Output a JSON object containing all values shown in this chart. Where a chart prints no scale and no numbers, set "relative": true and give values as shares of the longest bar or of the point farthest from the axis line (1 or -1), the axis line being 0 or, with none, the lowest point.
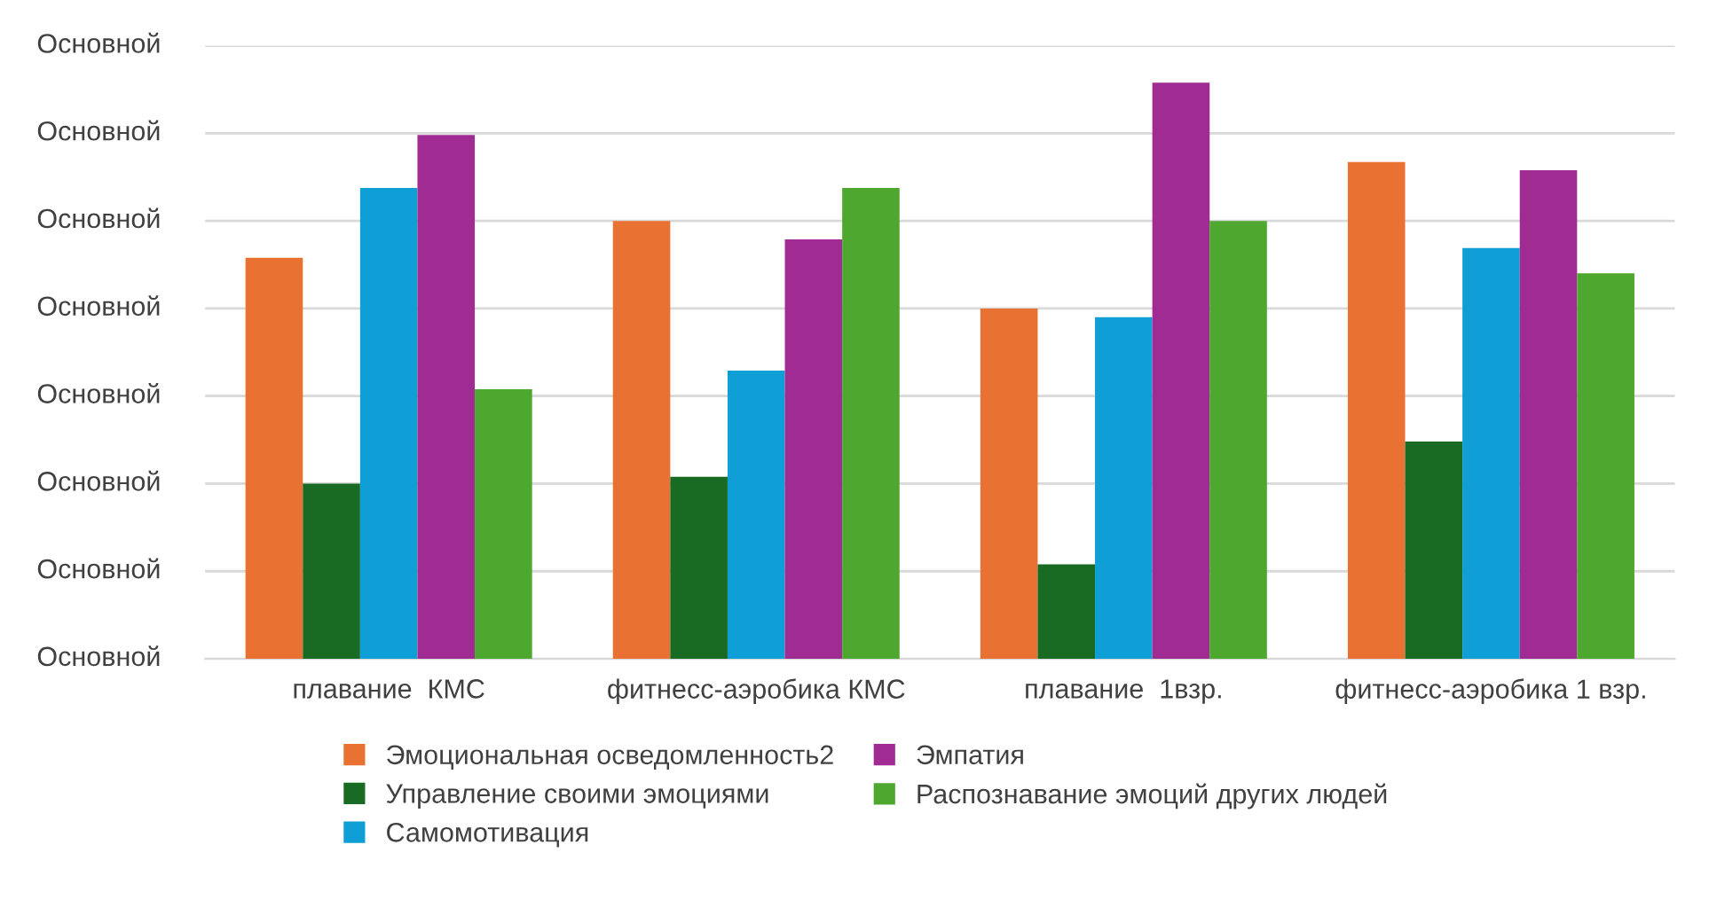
{
  "chart_data": {
    "type": "bar",
    "relative": true,
    "categories": [
      "плавание  КМС",
      "фитнесс-аэробика КМС",
      "плавание  1взр.",
      "фитнесс-аэробика 1 взр."
    ],
    "series": [
      {
        "name": "Эмоциональная осведомленность2",
        "color": "#e97132",
        "values": [
          0.696,
          0.76,
          0.608,
          0.862
        ]
      },
      {
        "name": "Управление своими эмоциями",
        "color": "#196b24",
        "values": [
          0.304,
          0.316,
          0.164,
          0.377
        ]
      },
      {
        "name": "Самомотивация",
        "color": "#0f9ed5",
        "values": [
          0.817,
          0.5,
          0.593,
          0.713
        ]
      },
      {
        "name": "Эмпатия",
        "color": "#a02b93",
        "values": [
          0.909,
          0.728,
          1.0,
          0.848
        ]
      },
      {
        "name": "Распознавание эмоций других людей",
        "color": "#4ea72e",
        "values": [
          0.468,
          0.817,
          0.76,
          0.669
        ]
      }
    ],
    "ylim": [
      0,
      1.064
    ],
    "annotations": [
      "Основной",
      "Основной",
      "Основной",
      "Основной",
      "Основной",
      "Основной",
      "Основной",
      "Основной"
    ],
    "grid": "y",
    "legend": "bottom"
  }
}
